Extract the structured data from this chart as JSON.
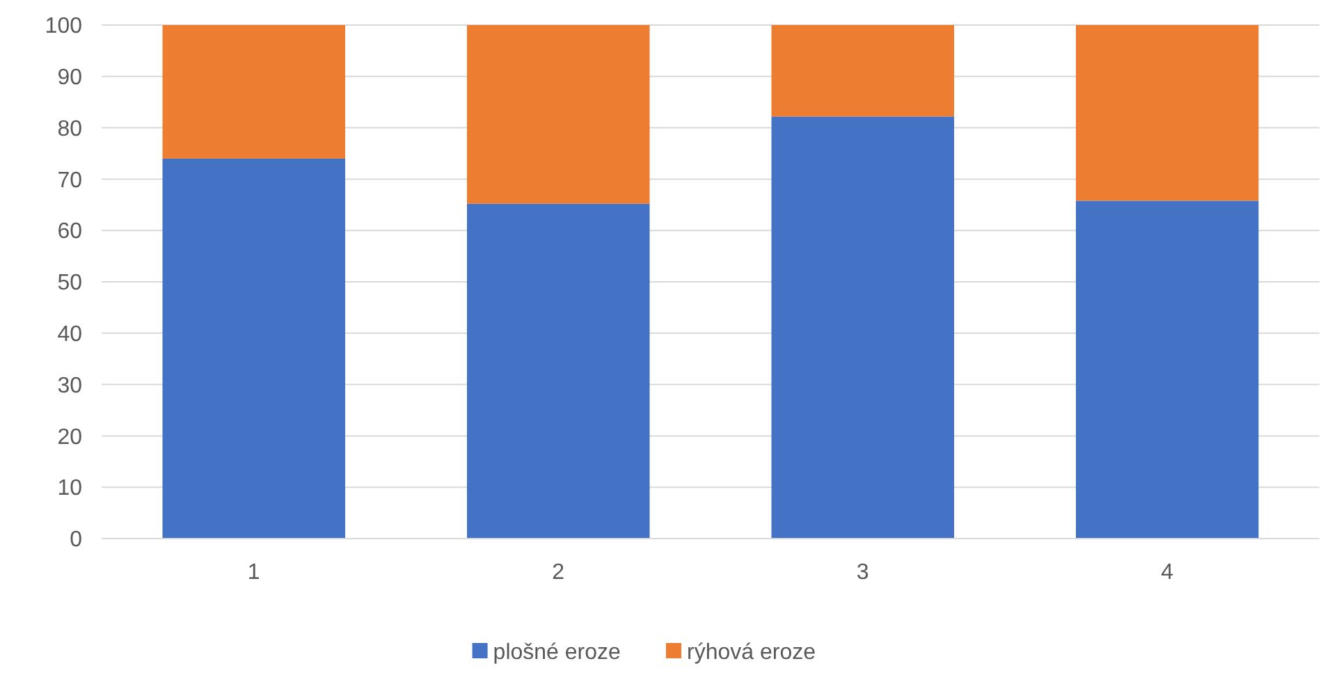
{
  "chart_data": {
    "type": "bar",
    "stacked": true,
    "categories": [
      "1",
      "2",
      "3",
      "4"
    ],
    "series": [
      {
        "name": "plošné eroze",
        "color": "#4472c4",
        "values": [
          74,
          65.2,
          82.2,
          65.8
        ]
      },
      {
        "name": "rýhová eroze",
        "color": "#ed7d31",
        "values": [
          26,
          34.8,
          17.8,
          34.2
        ]
      }
    ],
    "ylim": [
      0,
      100
    ],
    "yticks": [
      0,
      10,
      20,
      30,
      40,
      50,
      60,
      70,
      80,
      90,
      100
    ],
    "grid": "y",
    "legend": "bottom"
  }
}
